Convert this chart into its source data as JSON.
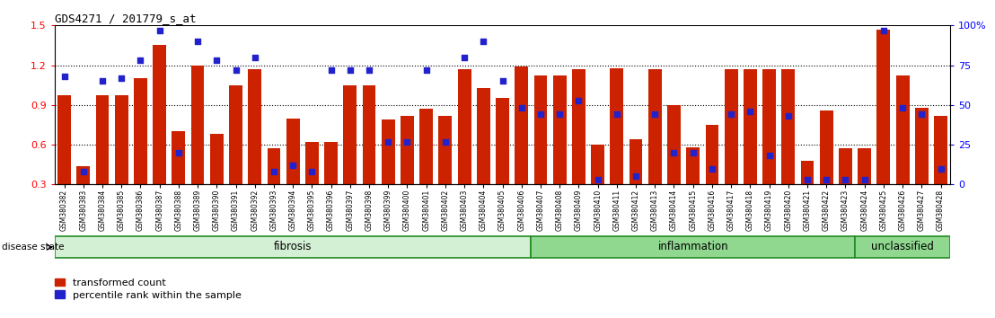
{
  "title": "GDS4271 / 201779_s_at",
  "samples": [
    "GSM380382",
    "GSM380383",
    "GSM380384",
    "GSM380385",
    "GSM380386",
    "GSM380387",
    "GSM380388",
    "GSM380389",
    "GSM380390",
    "GSM380391",
    "GSM380392",
    "GSM380393",
    "GSM380394",
    "GSM380395",
    "GSM380396",
    "GSM380397",
    "GSM380398",
    "GSM380399",
    "GSM380400",
    "GSM380401",
    "GSM380402",
    "GSM380403",
    "GSM380404",
    "GSM380405",
    "GSM380406",
    "GSM380407",
    "GSM380408",
    "GSM380409",
    "GSM380410",
    "GSM380411",
    "GSM380412",
    "GSM380413",
    "GSM380414",
    "GSM380415",
    "GSM380416",
    "GSM380417",
    "GSM380418",
    "GSM380419",
    "GSM380420",
    "GSM380421",
    "GSM380422",
    "GSM380423",
    "GSM380424",
    "GSM380425",
    "GSM380426",
    "GSM380427",
    "GSM380428"
  ],
  "transformed_count": [
    0.97,
    0.44,
    0.97,
    0.97,
    1.1,
    1.35,
    0.7,
    1.2,
    0.68,
    1.05,
    1.17,
    0.57,
    0.8,
    0.62,
    0.62,
    1.05,
    1.05,
    0.79,
    0.82,
    0.87,
    0.82,
    1.17,
    1.03,
    0.95,
    1.19,
    1.12,
    1.12,
    1.17,
    0.6,
    1.18,
    0.64,
    1.17,
    0.9,
    0.58,
    0.75,
    1.17,
    1.17,
    1.17,
    1.17,
    0.48,
    0.86,
    0.57,
    0.57,
    1.47,
    1.12,
    0.88,
    0.82
  ],
  "percentile_values": [
    68,
    8,
    65,
    67,
    78,
    97,
    20,
    90,
    78,
    72,
    80,
    8,
    12,
    8,
    72,
    72,
    72,
    27,
    27,
    72,
    27,
    80,
    90,
    65,
    48,
    44,
    44,
    53,
    3,
    44,
    5,
    44,
    20,
    20,
    10,
    44,
    46,
    18,
    43,
    3,
    3,
    3,
    3,
    97,
    48,
    44,
    10
  ],
  "groups": {
    "fibrosis": {
      "start": 0,
      "end": 25
    },
    "inflammation": {
      "start": 25,
      "end": 42
    },
    "unclassified": {
      "start": 42,
      "end": 47
    }
  },
  "fibrosis_color": "#d4f0d4",
  "inflammation_color": "#90d890",
  "unclassified_color": "#90d890",
  "group_edge_color": "#228B22",
  "bar_color": "#CC2200",
  "dot_color": "#2222CC",
  "ylim_left": [
    0.3,
    1.5
  ],
  "ylim_right": [
    0,
    100
  ],
  "yticks_left": [
    0.3,
    0.6,
    0.9,
    1.2,
    1.5
  ],
  "yticks_right": [
    0,
    25,
    50,
    75,
    100
  ],
  "dotted_lines": [
    0.6,
    0.9,
    1.2
  ],
  "bar_width": 0.7,
  "background_color": "#ffffff",
  "plot_bg_color": "#ffffff",
  "xtick_bg_color": "#d8d8d8"
}
